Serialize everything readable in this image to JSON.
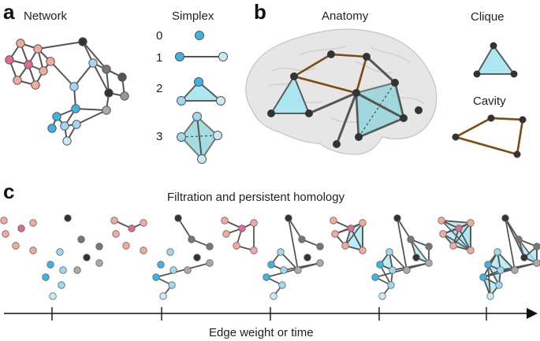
{
  "panels": {
    "a": {
      "letter": "a",
      "network_title": "Network",
      "simplex_title": "Simplex",
      "simplex_orders": [
        "0",
        "1",
        "2",
        "3"
      ]
    },
    "b": {
      "letter": "b",
      "anatomy_title": "Anatomy",
      "clique_title": "Clique",
      "cavity_title": "Cavity"
    },
    "c": {
      "letter": "c",
      "title": "Filtration and persistent homology",
      "axis_label": "Edge weight or time"
    }
  },
  "colors": {
    "pink_dark": "#e06b8c",
    "pink_light": "#f2ab9a",
    "blue_bright": "#3db3e6",
    "blue_light": "#9fd8ef",
    "blue_pale": "#c9eaf6",
    "gray_dark": "#333333",
    "gray_mid": "#777777",
    "gray_light": "#aaaaaa",
    "brown_edge": "#7a4b12",
    "simplex_fill": "#a8e6f2"
  }
}
